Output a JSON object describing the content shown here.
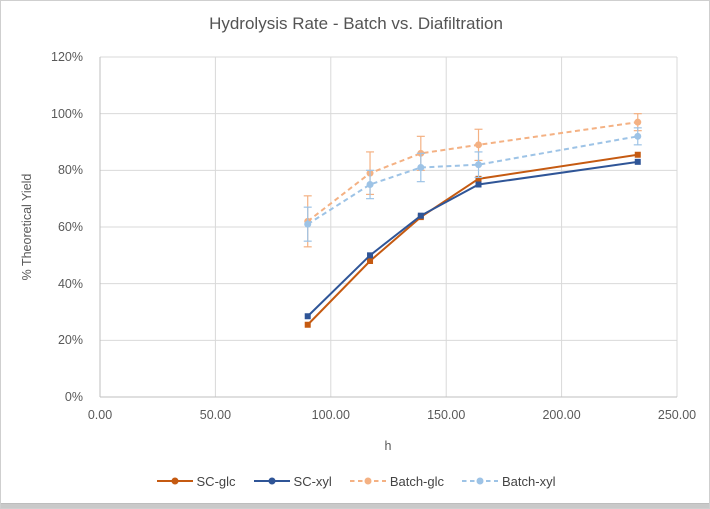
{
  "window": {
    "bg_color": "#ffffff",
    "border_color": "#cfcfcf",
    "bottom_strip_color": "#c9c9c9"
  },
  "chart_data": {
    "type": "line",
    "title": "Hydrolysis Rate - Batch vs. Diafiltration",
    "xlabel": "h",
    "ylabel": "% Theoretical Yield",
    "xlim": [
      0,
      250
    ],
    "ylim": [
      0,
      120
    ],
    "grid": true,
    "legend_position": "bottom",
    "x_tick_labels": [
      "0.00",
      "50.00",
      "100.00",
      "150.00",
      "200.00",
      "250.00"
    ],
    "x_tick_values": [
      0,
      50,
      100,
      150,
      200,
      250
    ],
    "y_tick_labels": [
      "0%",
      "20%",
      "40%",
      "60%",
      "80%",
      "100%",
      "120%"
    ],
    "y_tick_values": [
      0,
      20,
      40,
      60,
      80,
      100,
      120
    ],
    "x": [
      90,
      117,
      139,
      164,
      233
    ],
    "series": [
      {
        "name": "SC-glc",
        "color": "#C55A11",
        "style": "solid",
        "marker": "square",
        "values": [
          25.5,
          48,
          63.5,
          77,
          85.5
        ],
        "error": null
      },
      {
        "name": "SC-xyl",
        "color": "#2F5597",
        "style": "solid",
        "marker": "square",
        "values": [
          28.5,
          50,
          64,
          75,
          83
        ],
        "error": null
      },
      {
        "name": "Batch-glc",
        "color": "#F4B183",
        "style": "dashed",
        "marker": "circle",
        "values": [
          62,
          79,
          86,
          89,
          97
        ],
        "error": [
          9,
          7.5,
          6,
          5.5,
          3
        ]
      },
      {
        "name": "Batch-xyl",
        "color": "#9DC3E6",
        "style": "dashed",
        "marker": "circle",
        "values": [
          61,
          75,
          81,
          82,
          92
        ],
        "error": [
          6,
          5,
          5,
          4.5,
          3
        ]
      }
    ],
    "colors": {
      "gridline": "#D9D9D9",
      "axis": "#BFBFBF",
      "title_text": "#545454",
      "tick_text": "#595959",
      "legend_text": "#444444"
    }
  }
}
